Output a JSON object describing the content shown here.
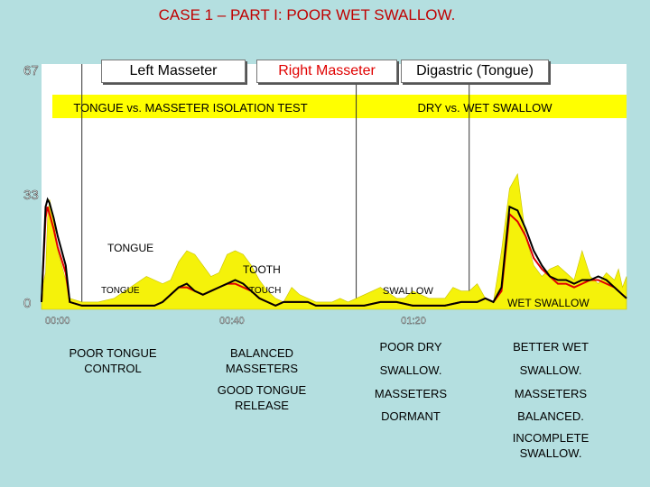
{
  "title": "CASE 1 – PART I: POOR WET SWALLOW.",
  "legend": {
    "left_masseter": "Left Masseter",
    "right_masseter": "Right Masseter",
    "digastric": "Digastric (Tongue)"
  },
  "colors": {
    "left": "#000000",
    "right": "#e00000",
    "digastric": "#f5f20a",
    "banner": "#ffff00",
    "title": "#c00000",
    "background": "#b4dfe0"
  },
  "chart_data": {
    "type": "line",
    "y_ticks": [
      "67",
      "33",
      "0"
    ],
    "x_ticks": [
      "00:00",
      "00:40",
      "01:20"
    ],
    "ylim": [
      0,
      67
    ],
    "xlim": [
      0,
      145
    ],
    "banners": [
      "TONGUE vs. MASSETER ISOLATION TEST",
      "DRY vs. WET SWALLOW"
    ],
    "annotations": [
      "TONGUE",
      "TOOTH",
      "TONGUE",
      "TOUCH",
      "SWALLOW",
      "WET SWALLOW"
    ],
    "series": [
      {
        "name": "Digastric (Tongue)",
        "x": [
          0,
          1,
          1.5,
          2,
          3,
          4,
          6,
          7,
          10,
          14,
          18,
          22,
          26,
          28,
          30,
          32,
          34,
          36,
          38,
          40,
          42,
          44,
          46,
          48,
          50,
          52,
          54,
          56,
          58,
          60,
          62,
          64,
          66,
          68,
          70,
          72,
          74,
          76,
          80,
          84,
          88,
          90,
          92,
          94,
          96,
          98,
          100,
          102,
          104,
          106,
          108,
          110,
          112,
          114,
          116,
          118,
          120,
          122,
          124,
          126,
          128,
          130,
          132,
          134,
          136,
          138,
          140,
          142,
          143,
          144,
          145
        ],
        "values": [
          5,
          10,
          25,
          30,
          25,
          16,
          8,
          3,
          2,
          2,
          3,
          6,
          9,
          8,
          7,
          8,
          13,
          16,
          15,
          12,
          9,
          10,
          15,
          16,
          15,
          12,
          8,
          5,
          3,
          2,
          6,
          4,
          3,
          2,
          2,
          2,
          3,
          2,
          4,
          6,
          3,
          3,
          5,
          4,
          3,
          3,
          3,
          6,
          5,
          5,
          7,
          3,
          2,
          16,
          33,
          37,
          20,
          12,
          9,
          11,
          12,
          10,
          8,
          16,
          9,
          7,
          10,
          8,
          11,
          6,
          9
        ]
      },
      {
        "name": "Left Masseter",
        "x": [
          0,
          1,
          1.5,
          2,
          3,
          4,
          6,
          7,
          10,
          20,
          28,
          30,
          32,
          34,
          36,
          38,
          40,
          42,
          44,
          46,
          48,
          50,
          52,
          54,
          56,
          58,
          60,
          62,
          64,
          66,
          68,
          70,
          72,
          76,
          80,
          84,
          88,
          92,
          96,
          100,
          104,
          106,
          108,
          110,
          112,
          114,
          116,
          118,
          120,
          122,
          124,
          126,
          128,
          130,
          132,
          134,
          136,
          138,
          140,
          142,
          144,
          145
        ],
        "values": [
          2,
          28,
          30,
          29,
          25,
          20,
          12,
          2,
          1,
          1,
          1,
          2,
          4,
          6,
          7,
          5,
          4,
          5,
          6,
          7,
          8,
          7,
          5,
          3,
          2,
          1,
          2,
          2,
          2,
          2,
          1,
          1,
          1,
          1,
          1,
          2,
          2,
          1,
          1,
          1,
          2,
          2,
          2,
          3,
          2,
          6,
          28,
          27,
          22,
          16,
          12,
          9,
          8,
          8,
          7,
          8,
          8,
          9,
          8,
          6,
          4,
          3
        ]
      },
      {
        "name": "Right Masseter",
        "x": [
          0,
          1,
          1.5,
          2,
          3,
          4,
          6,
          7,
          10,
          20,
          28,
          30,
          32,
          34,
          36,
          38,
          40,
          42,
          44,
          46,
          48,
          50,
          52,
          54,
          56,
          58,
          60,
          62,
          64,
          66,
          68,
          70,
          72,
          76,
          80,
          84,
          88,
          92,
          96,
          100,
          104,
          106,
          108,
          110,
          112,
          114,
          116,
          118,
          120,
          122,
          124,
          126,
          128,
          130,
          132,
          134,
          136,
          138,
          140,
          142,
          144,
          145
        ],
        "values": [
          2,
          25,
          28,
          26,
          22,
          17,
          10,
          2,
          1,
          1,
          1,
          2,
          4,
          6,
          6,
          5,
          4,
          5,
          6,
          7,
          7,
          6,
          5,
          3,
          2,
          1,
          2,
          2,
          2,
          2,
          1,
          1,
          1,
          1,
          1,
          2,
          2,
          1,
          1,
          1,
          2,
          2,
          2,
          3,
          2,
          5,
          26,
          24,
          20,
          14,
          11,
          9,
          7,
          7,
          6,
          7,
          8,
          8,
          7,
          6,
          4,
          3
        ]
      }
    ]
  },
  "captions": {
    "c1": "POOR TONGUE\nCONTROL",
    "c2a": "BALANCED\nMASSETERS",
    "c2b": "GOOD TONGUE\nRELEASE",
    "c3a": "POOR DRY",
    "c3b": "SWALLOW.",
    "c3c": "MASSETERS",
    "c3d": "DORMANT",
    "c4a": "BETTER WET",
    "c4b": "SWALLOW.",
    "c4c": "MASSETERS",
    "c4d": "BALANCED.",
    "c4e": "INCOMPLETE\nSWALLOW."
  }
}
